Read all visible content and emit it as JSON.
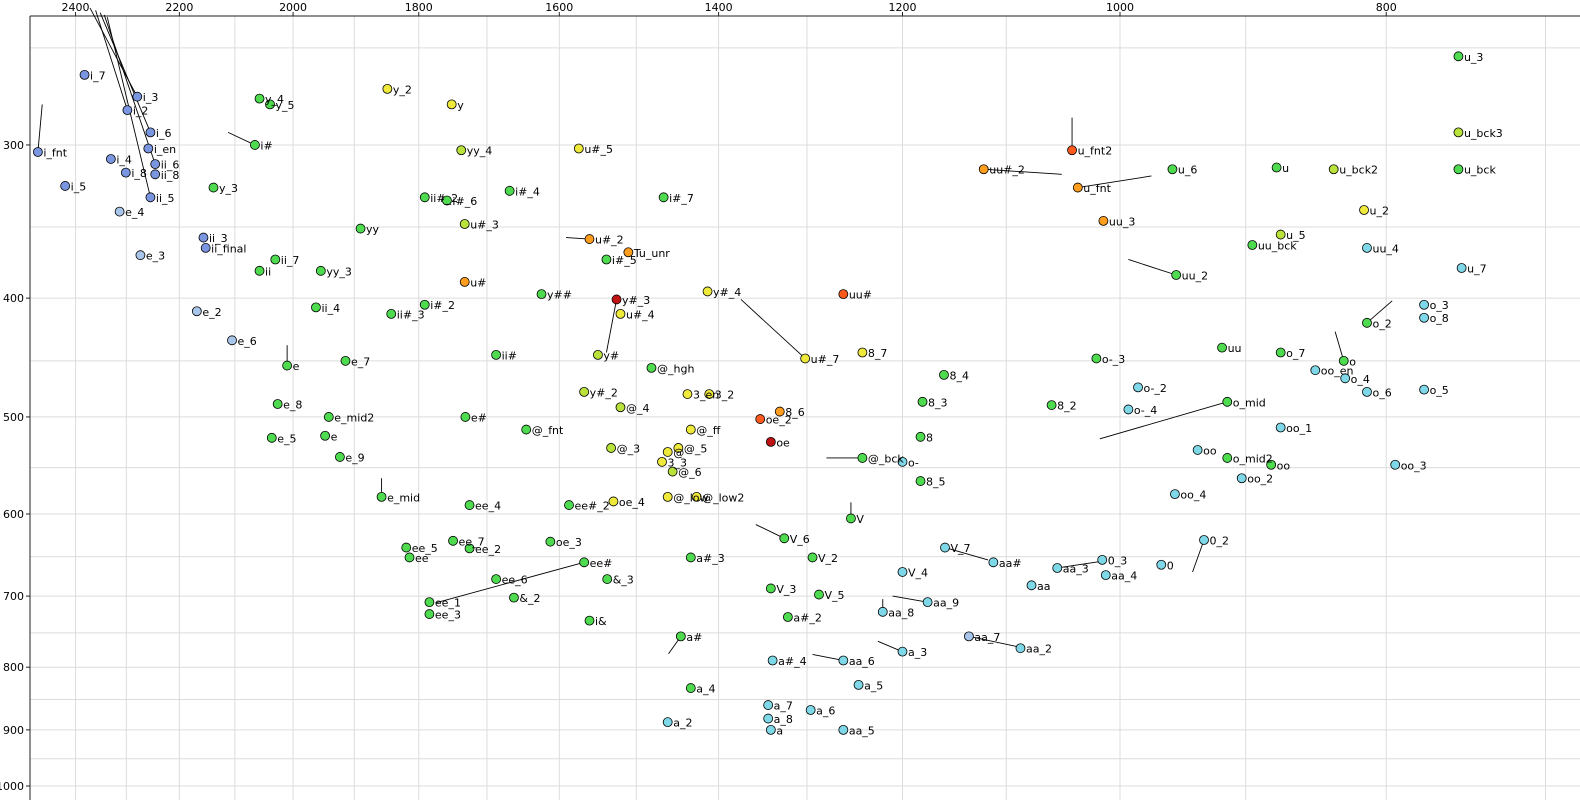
{
  "chart_data": {
    "type": "scatter",
    "title": "",
    "xlabel": "",
    "ylabel": "",
    "description": "Vowel formant scatter plot: F2 (Hz, log scale, reversed) on top x-axis, F1 (Hz, log scale, reversed) on left y-axis. Each point is a labeled vowel token.",
    "x_axis": {
      "scale": "log",
      "reversed": true,
      "position": "top",
      "tick_labels": [
        2400,
        2200,
        2000,
        1800,
        1600,
        1400,
        1200,
        1000,
        800
      ],
      "gridlines": {
        "from": 2500,
        "to": 700,
        "step": 100
      }
    },
    "y_axis": {
      "scale": "log",
      "reversed": true,
      "position": "left",
      "tick_labels": [
        300,
        400,
        500,
        600,
        700,
        800,
        900,
        1000
      ],
      "gridlines": {
        "from": 250,
        "to": 1000,
        "step": 50
      }
    },
    "grid": true,
    "grid_color": "#dcdcdc",
    "axis_color": "#222222",
    "palette": {
      "blue": "#7b96e0",
      "lightblue": "#a9c6ea",
      "cyan": "#7fd8e8",
      "green": "#4fdb4f",
      "yellowgreen": "#b9e23b",
      "yellow": "#efe93c",
      "orange": "#ff9d1e",
      "orangered": "#ff5a1e",
      "darkred": "#c01414"
    },
    "points_format": [
      "label",
      "x_F2_Hz",
      "y_F1_Hz",
      "color_key",
      "optional_leader_line_end [x,y]"
    ],
    "points": [
      [
        "i_7",
        2382,
        263,
        "blue"
      ],
      [
        "i_3",
        2279,
        274,
        "blue",
        [
          2371,
          232
        ]
      ],
      [
        "i_2",
        2298,
        281,
        "blue",
        [
          2360,
          233
        ]
      ],
      [
        "i_6",
        2254,
        293,
        "blue",
        [
          2351,
          234
        ]
      ],
      [
        "i_en",
        2258,
        302,
        "blue"
      ],
      [
        "ii_6",
        2245,
        311,
        "blue",
        [
          2343,
          235
        ]
      ],
      [
        "ii_8",
        2245,
        317,
        "blue"
      ],
      [
        "i_fnt",
        2477,
        304,
        "blue",
        [
          2468,
          278
        ]
      ],
      [
        "i_4",
        2330,
        308,
        "blue"
      ],
      [
        "i_8",
        2301,
        316,
        "blue"
      ],
      [
        "i_5",
        2421,
        324,
        "blue"
      ],
      [
        "ii_5",
        2254,
        331,
        "blue",
        [
          2337,
          236
        ]
      ],
      [
        "e_4",
        2313,
        340,
        "lightblue"
      ],
      [
        "ii_3",
        2156,
        357,
        "blue"
      ],
      [
        "ii_final",
        2152,
        364,
        "blue"
      ],
      [
        "e_3",
        2273,
        369,
        "lightblue"
      ],
      [
        "y_4",
        2057,
        275,
        "green"
      ],
      [
        "y_5",
        2039,
        278,
        "green"
      ],
      [
        "i#",
        2065,
        300,
        "green",
        [
          2112,
          293
        ]
      ],
      [
        "y_3",
        2138,
        325,
        "green"
      ],
      [
        "ii_7",
        2030,
        372,
        "green"
      ],
      [
        "ii",
        2057,
        380,
        "green"
      ],
      [
        "yy_3",
        1954,
        380,
        "green"
      ],
      [
        "y_2",
        1848,
        270,
        "yellow"
      ],
      [
        "y",
        1751,
        278,
        "yellow"
      ],
      [
        "yy_4",
        1737,
        303,
        "yellowgreen"
      ],
      [
        "u#_5",
        1574,
        302,
        "yellow"
      ],
      [
        "ii#_2",
        1791,
        331,
        "green"
      ],
      [
        "i#_6",
        1758,
        333,
        "green"
      ],
      [
        "i#_4",
        1668,
        327,
        "green"
      ],
      [
        "i#_7",
        1466,
        331,
        "green"
      ],
      [
        "u#_3",
        1732,
        348,
        "yellowgreen"
      ],
      [
        "yy",
        1890,
        351,
        "green"
      ],
      [
        "u#_2",
        1560,
        358,
        "orange",
        [
          1591,
          357
        ]
      ],
      [
        "i#_5",
        1538,
        372,
        "green"
      ],
      [
        "Tu_unr",
        1510,
        367,
        "orange"
      ],
      [
        "u_fnt2",
        1041,
        303,
        "orangered",
        [
          1041,
          285
        ]
      ],
      [
        "uu#_2",
        1121,
        314,
        "orange",
        [
          1050,
          317
        ]
      ],
      [
        "u_fnt",
        1036,
        325,
        "orange",
        [
          974,
          318
        ]
      ],
      [
        "u_6",
        957,
        314,
        "green"
      ],
      [
        "u",
        877,
        313,
        "green"
      ],
      [
        "u_bck2",
        836,
        314,
        "yellowgreen"
      ],
      [
        "u_bck",
        753,
        314,
        "green"
      ],
      [
        "u_3",
        753,
        254,
        "green"
      ],
      [
        "u_bck3",
        753,
        293,
        "yellowgreen"
      ],
      [
        "u_2",
        815,
        339,
        "yellow"
      ],
      [
        "uu_3",
        1014,
        346,
        "orange"
      ],
      [
        "u_5",
        874,
        355,
        "yellowgreen"
      ],
      [
        "uu_bck",
        895,
        362,
        "green"
      ],
      [
        "uu_4",
        813,
        364,
        "cyan"
      ],
      [
        "u_7",
        751,
        378,
        "cyan"
      ],
      [
        "uu_2",
        954,
        383,
        "green",
        [
          993,
          372
        ]
      ],
      [
        "uu#",
        1261,
        397,
        "orangered"
      ],
      [
        "y#_4",
        1413,
        395,
        "yellow"
      ],
      [
        "y##",
        1624,
        397,
        "green"
      ],
      [
        "u#",
        1732,
        388,
        "orange"
      ],
      [
        "y#_3",
        1525,
        401,
        "darkred",
        [
          1538,
          443
        ]
      ],
      [
        "u#_4",
        1520,
        412,
        "yellow"
      ],
      [
        "ii_4",
        1962,
        407,
        "green"
      ],
      [
        "ii#_3",
        1842,
        412,
        "green"
      ],
      [
        "i#_2",
        1791,
        405,
        "green"
      ],
      [
        "e_2",
        2168,
        410,
        "lightblue"
      ],
      [
        "e_6",
        2105,
        433,
        "lightblue"
      ],
      [
        "e",
        2010,
        454,
        "green",
        [
          2010,
          437
        ]
      ],
      [
        "e_7",
        1914,
        450,
        "green"
      ],
      [
        "ii#",
        1687,
        445,
        "green"
      ],
      [
        "y#",
        1549,
        445,
        "yellowgreen"
      ],
      [
        "u#_7",
        1302,
        448,
        "yellow",
        [
          1374,
          401
        ]
      ],
      [
        "8_7",
        1241,
        443,
        "yellow"
      ],
      [
        "@_hgh",
        1481,
        456,
        "green"
      ],
      [
        "8_4",
        1159,
        462,
        "green"
      ],
      [
        "o-_3",
        1020,
        448,
        "green"
      ],
      [
        "uu",
        918,
        439,
        "green"
      ],
      [
        "o_7",
        874,
        443,
        "green"
      ],
      [
        "oo_en",
        849,
        458,
        "cyan"
      ],
      [
        "o_4",
        828,
        465,
        "cyan"
      ],
      [
        "o",
        829,
        450,
        "green",
        [
          835,
          426
        ]
      ],
      [
        "o_2",
        813,
        419,
        "green",
        [
          796,
          402
        ]
      ],
      [
        "o_3",
        775,
        405,
        "cyan"
      ],
      [
        "o_8",
        775,
        415,
        "cyan"
      ],
      [
        "o_6",
        813,
        477,
        "cyan"
      ],
      [
        "o_5",
        775,
        475,
        "cyan"
      ],
      [
        "8_3",
        1180,
        486,
        "green"
      ],
      [
        "8_2",
        1059,
        489,
        "green"
      ],
      [
        "o-_2",
        985,
        473,
        "cyan"
      ],
      [
        "o-_4",
        993,
        493,
        "cyan"
      ],
      [
        "o_mid",
        914,
        486,
        "green",
        [
          1017,
          521
        ]
      ],
      [
        "oo_1",
        874,
        510,
        "cyan"
      ],
      [
        "y#_2",
        1567,
        477,
        "yellowgreen"
      ],
      [
        "@_4",
        1520,
        491,
        "yellowgreen"
      ],
      [
        "3_en",
        1437,
        479,
        "yellow"
      ],
      [
        "3_2",
        1411,
        479,
        "yellow"
      ],
      [
        "8_6",
        1330,
        495,
        "orange"
      ],
      [
        "oe_2",
        1352,
        502,
        "orangered"
      ],
      [
        "@_ff",
        1433,
        512,
        "yellow"
      ],
      [
        "oe",
        1340,
        524,
        "darkred"
      ],
      [
        "e_8",
        2026,
        488,
        "green"
      ],
      [
        "e_mid2",
        1941,
        500,
        "green"
      ],
      [
        "e#",
        1731,
        500,
        "green"
      ],
      [
        "@_fnt",
        1645,
        512,
        "green"
      ],
      [
        "e_5",
        2036,
        520,
        "green"
      ],
      [
        "e",
        1947,
        518,
        "green"
      ],
      [
        "e_9",
        1923,
        539,
        "green"
      ],
      [
        "@_3",
        1532,
        530,
        "yellowgreen"
      ],
      [
        "@",
        1461,
        534,
        "yellow"
      ],
      [
        "@_5",
        1448,
        530,
        "yellow"
      ],
      [
        "3_3",
        1468,
        544,
        "yellow"
      ],
      [
        "@_6",
        1455,
        554,
        "yellowgreen"
      ],
      [
        "@_bck",
        1241,
        540,
        "green",
        [
          1279,
          540
        ]
      ],
      [
        "o-",
        1200,
        544,
        "cyan"
      ],
      [
        "8",
        1182,
        519,
        "green"
      ],
      [
        "8_5",
        1182,
        564,
        "green"
      ],
      [
        "oo",
        937,
        532,
        "cyan"
      ],
      [
        "o_mid2",
        914,
        540,
        "green"
      ],
      [
        "oo",
        881,
        547,
        "green"
      ],
      [
        "oo_2",
        903,
        561,
        "cyan"
      ],
      [
        "oo_3",
        794,
        547,
        "cyan"
      ],
      [
        "oo_4",
        955,
        578,
        "cyan"
      ],
      [
        "e_mid",
        1857,
        581,
        "green",
        [
          1857,
          561
        ]
      ],
      [
        "ee_4",
        1725,
        590,
        "green"
      ],
      [
        "ee#_2",
        1587,
        590,
        "green"
      ],
      [
        "oe_4",
        1529,
        586,
        "yellow"
      ],
      [
        "@_low",
        1461,
        581,
        "yellow"
      ],
      [
        "@_low2",
        1426,
        581,
        "yellow"
      ],
      [
        "V",
        1253,
        605,
        "green",
        [
          1253,
          587
        ]
      ],
      [
        "V_6",
        1325,
        628,
        "green",
        [
          1357,
          612
        ]
      ],
      [
        "ee_5",
        1819,
        639,
        "green"
      ],
      [
        "ee_7",
        1749,
        631,
        "green"
      ],
      [
        "ee_2",
        1725,
        640,
        "green"
      ],
      [
        "ee",
        1814,
        651,
        "green"
      ],
      [
        "oe_3",
        1612,
        632,
        "green"
      ],
      [
        "ee#",
        1567,
        657,
        "green",
        [
          1775,
          709
        ]
      ],
      [
        "V_2",
        1294,
        651,
        "green"
      ],
      [
        "V_7",
        1158,
        639,
        "cyan",
        [
          1117,
          654
        ]
      ],
      [
        "aa#",
        1112,
        657,
        "cyan"
      ],
      [
        "aa_3",
        1054,
        664,
        "cyan",
        [
          1017,
          656
        ]
      ],
      [
        "0_3",
        1015,
        654,
        "cyan"
      ],
      [
        "aa_4",
        1012,
        673,
        "cyan"
      ],
      [
        "0",
        966,
        660,
        "cyan"
      ],
      [
        "0_2",
        932,
        630,
        "cyan",
        [
          941,
          669
        ]
      ],
      [
        "&_3",
        1537,
        678,
        "green"
      ],
      [
        "a#_3",
        1433,
        651,
        "green"
      ],
      [
        "ee_6",
        1687,
        678,
        "green"
      ],
      [
        "&_2",
        1662,
        702,
        "green"
      ],
      [
        "ee_1",
        1784,
        708,
        "green"
      ],
      [
        "ee_3",
        1784,
        724,
        "green"
      ],
      [
        "V_3",
        1340,
        690,
        "green"
      ],
      [
        "V_5",
        1287,
        698,
        "green"
      ],
      [
        "V_4",
        1200,
        669,
        "cyan"
      ],
      [
        "aa",
        1077,
        686,
        "cyan"
      ],
      [
        "aa_9",
        1175,
        708,
        "cyan",
        [
          1210,
          700
        ]
      ],
      [
        "aa_8",
        1220,
        721,
        "cyan",
        [
          1220,
          704
        ]
      ],
      [
        "a#_2",
        1321,
        728,
        "green"
      ],
      [
        "a#",
        1445,
        755,
        "green",
        [
          1460,
          780
        ]
      ],
      [
        "i&",
        1560,
        733,
        "green"
      ],
      [
        "aa_7",
        1135,
        755,
        "lightblue",
        [
          1083,
          772
        ]
      ],
      [
        "aa_2",
        1087,
        772,
        "cyan"
      ],
      [
        "a_3",
        1200,
        777,
        "cyan",
        [
          1225,
          762
        ]
      ],
      [
        "a#_4",
        1338,
        790,
        "cyan"
      ],
      [
        "aa_6",
        1261,
        790,
        "cyan",
        [
          1294,
          781
        ]
      ],
      [
        "a_5",
        1245,
        827,
        "cyan"
      ],
      [
        "a_4",
        1433,
        832,
        "green"
      ],
      [
        "a_7",
        1343,
        859,
        "cyan"
      ],
      [
        "a_8",
        1343,
        881,
        "cyan"
      ],
      [
        "a_6",
        1296,
        867,
        "cyan"
      ],
      [
        "a_2",
        1461,
        887,
        "cyan"
      ],
      [
        "a",
        1340,
        900,
        "cyan"
      ],
      [
        "aa_5",
        1261,
        900,
        "cyan"
      ]
    ]
  }
}
